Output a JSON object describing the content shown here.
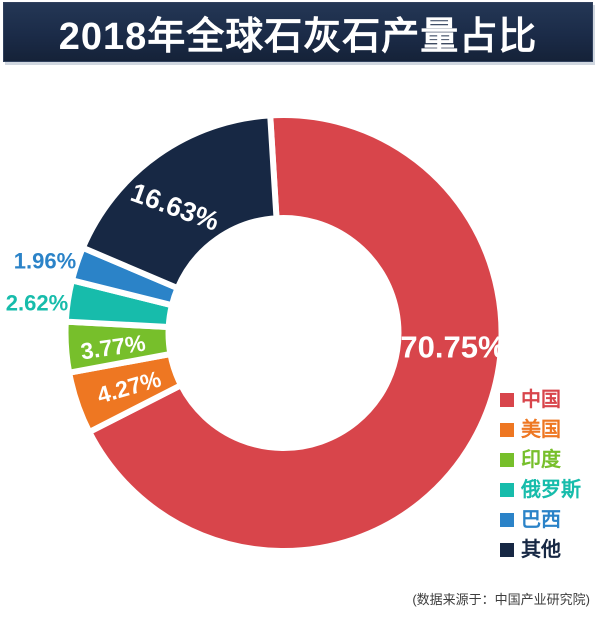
{
  "title": "2018年全球石灰石产量占比",
  "source_note": "(数据来源于：中国产业研究院)",
  "colors": {
    "background": "#ffffff",
    "banner_bg": "#1b2b48",
    "banner_text": "#ffffff",
    "inside_label_text": "#ffffff",
    "footer_text": "#3d3d3d",
    "slice_divider": "#ffffff"
  },
  "chart_data": {
    "type": "pie",
    "subtype": "donut",
    "title": "2018年全球石灰石产量占比",
    "unit": "%",
    "direction": "clockwise",
    "start_angle": "top",
    "legend_position": "right",
    "total": 100.0,
    "slices": [
      {
        "name": "中国",
        "value": 70.75,
        "label": "70.75%",
        "color": "#d8454b"
      },
      {
        "name": "美国",
        "value": 4.27,
        "label": "4.27%",
        "color": "#ee7722"
      },
      {
        "name": "印度",
        "value": 3.77,
        "label": "3.77%",
        "color": "#77bf2b"
      },
      {
        "name": "俄罗斯",
        "value": 2.62,
        "label": "2.62%",
        "color": "#17bcab"
      },
      {
        "name": "巴西",
        "value": 1.96,
        "label": "1.96%",
        "color": "#2b83c8"
      },
      {
        "name": "其他",
        "value": 16.63,
        "label": "16.63%",
        "color": "#172844"
      }
    ]
  }
}
